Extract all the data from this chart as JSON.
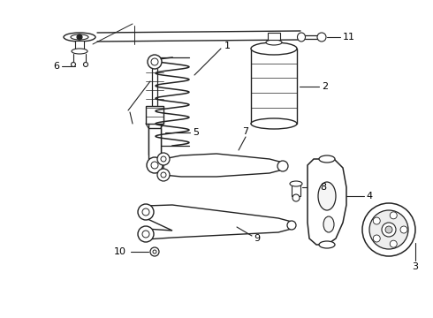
{
  "bg_color": "#ffffff",
  "line_color": "#222222",
  "label_color": "#000000",
  "figsize": [
    4.9,
    3.6
  ],
  "dpi": 100,
  "xlim": [
    0,
    490
  ],
  "ylim": [
    0,
    360
  ]
}
